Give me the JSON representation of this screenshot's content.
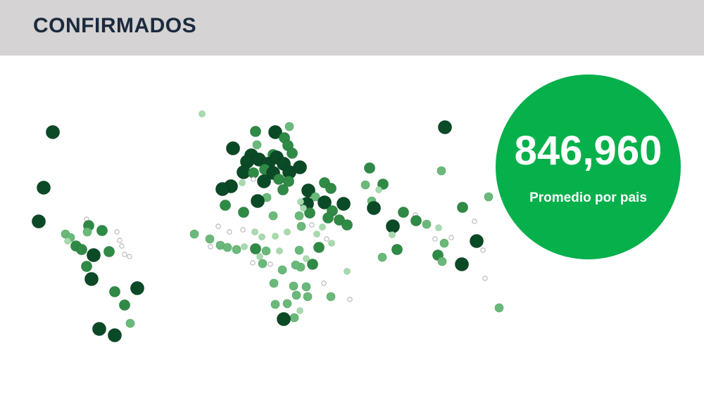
{
  "header": {
    "title": "CONFIRMADOS"
  },
  "kpi": {
    "value": "846,960",
    "label": "Promedio por pais"
  },
  "colors": {
    "header_bg": "#d5d3d3",
    "title": "#1b2a3d",
    "kpi_bg": "#06b04b",
    "level_4": "#0b4a26",
    "level_3": "#2f8a45",
    "level_2": "#6bb97a",
    "level_1": "#a9d9ae",
    "level_0": "#ffffff"
  },
  "map": {
    "type": "bubble-map",
    "levels": 5
  }
}
